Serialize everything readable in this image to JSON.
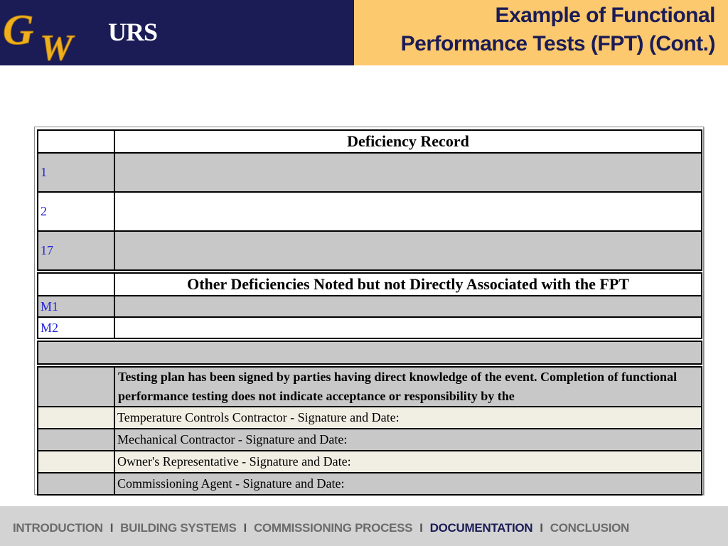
{
  "header": {
    "brand": "URS",
    "logo_text": "GW",
    "title_line1": "Example of Functional",
    "title_line2": "Performance Tests (FPT) (Cont.)"
  },
  "table": {
    "deficiency_header": "Deficiency Record",
    "deficiency_rows": [
      {
        "id": "1",
        "text": ""
      },
      {
        "id": "2",
        "text": ""
      },
      {
        "id": "17",
        "text": ""
      }
    ],
    "other_header": "Other Deficiencies Noted but not Directly Associated with the FPT",
    "other_rows": [
      {
        "id": "M1",
        "text": ""
      },
      {
        "id": "M2",
        "text": ""
      }
    ],
    "statement": "Testing plan has been signed by parties having direct knowledge of the event. Completion of functional performance testing does not indicate acceptance or responsibility by the",
    "signatures": [
      "Temperature Controls Contractor - Signature and Date:",
      "Mechanical Contractor - Signature and Date:",
      "Owner's Representative - Signature and Date:",
      "Commissioning Agent - Signature and Date:"
    ]
  },
  "footer": {
    "nav": [
      {
        "label": "INTRODUCTION",
        "active": false
      },
      {
        "label": "BUILDING SYSTEMS",
        "active": false
      },
      {
        "label": "COMMISSIONING PROCESS",
        "active": false
      },
      {
        "label": "DOCUMENTATION",
        "active": true
      },
      {
        "label": "CONCLUSION",
        "active": false
      }
    ],
    "separator": "I"
  },
  "colors": {
    "navy": "#1b1c56",
    "gold": "#fcc96e",
    "row_gray": "#c8c8c8",
    "row_cream": "#f1efe4",
    "id_blue": "#2323d9",
    "footer_bg": "#d3d3d3"
  }
}
